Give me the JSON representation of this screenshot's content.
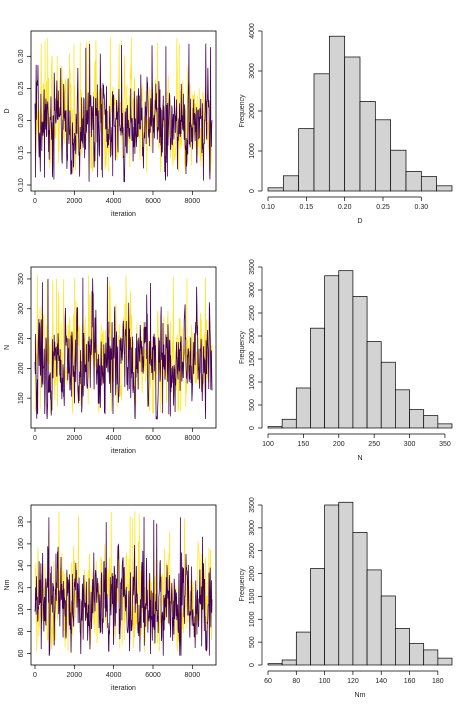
{
  "colors": {
    "chain1": "#FDE725",
    "chain2": "#440154",
    "bar_fill": "#D3D3D3",
    "bar_stroke": "#000000"
  },
  "chart_data": [
    {
      "type": "line",
      "title": "",
      "xlabel": "iteration",
      "ylabel": "D",
      "xlim": [
        0,
        9000
      ],
      "ylim": [
        0.1,
        0.33
      ],
      "xticks": [
        0,
        2000,
        4000,
        6000,
        8000
      ],
      "yticks": [
        0.1,
        0.15,
        0.2,
        0.25,
        0.3
      ],
      "ytick_labels": [
        "0.10",
        "0.15",
        "0.20",
        "0.25",
        "0.30"
      ],
      "series": [
        {
          "color": "#FDE725",
          "seed": 11,
          "mean": 0.2,
          "sd": 0.038,
          "min": 0.12,
          "max": 0.33
        },
        {
          "color": "#440154",
          "seed": 29,
          "mean": 0.195,
          "sd": 0.036,
          "min": 0.105,
          "max": 0.32
        }
      ]
    },
    {
      "type": "bar",
      "title": "",
      "xlabel": "D",
      "ylabel": "Frequency",
      "bin_edges": [
        0.1,
        0.12,
        0.14,
        0.16,
        0.18,
        0.2,
        0.22,
        0.24,
        0.26,
        0.28,
        0.3,
        0.32,
        0.34
      ],
      "values": [
        80,
        380,
        1560,
        2930,
        3870,
        3350,
        2240,
        1780,
        1020,
        490,
        360,
        130
      ],
      "xticks": [
        0.1,
        0.15,
        0.2,
        0.25,
        0.3
      ],
      "xtick_labels": [
        "0.10",
        "0.15",
        "0.20",
        "0.25",
        "0.30"
      ],
      "yticks": [
        0,
        1000,
        2000,
        3000,
        4000
      ],
      "ylim": [
        0,
        4000
      ]
    },
    {
      "type": "line",
      "title": "",
      "xlabel": "iteration",
      "ylabel": "N",
      "xlim": [
        0,
        9000
      ],
      "ylim": [
        110,
        360
      ],
      "xticks": [
        0,
        2000,
        4000,
        6000,
        8000
      ],
      "yticks": [
        150,
        200,
        250,
        300,
        350
      ],
      "ytick_labels": [
        "150",
        "200",
        "250",
        "300",
        "350"
      ],
      "series": [
        {
          "color": "#FDE725",
          "seed": 47,
          "mean": 220,
          "sd": 42,
          "min": 125,
          "max": 360
        },
        {
          "color": "#440154",
          "seed": 83,
          "mean": 212,
          "sd": 40,
          "min": 115,
          "max": 355
        }
      ]
    },
    {
      "type": "bar",
      "title": "",
      "xlabel": "N",
      "ylabel": "Frequency",
      "bin_edges": [
        100,
        120,
        140,
        160,
        180,
        200,
        220,
        240,
        260,
        280,
        300,
        320,
        340,
        360
      ],
      "values": [
        30,
        190,
        870,
        2170,
        3310,
        3420,
        2860,
        1880,
        1430,
        830,
        400,
        270,
        90
      ],
      "xticks": [
        100,
        150,
        200,
        250,
        300,
        350
      ],
      "xtick_labels": [
        "100",
        "150",
        "200",
        "250",
        "300",
        "350"
      ],
      "yticks": [
        0,
        500,
        1000,
        1500,
        2000,
        2500,
        3000,
        3500
      ],
      "ylim": [
        0,
        3500
      ]
    },
    {
      "type": "line",
      "title": "",
      "xlabel": "iteration",
      "ylabel": "Nm",
      "xlim": [
        0,
        9000
      ],
      "ylim": [
        55,
        190
      ],
      "xticks": [
        0,
        2000,
        4000,
        6000,
        8000
      ],
      "yticks": [
        60,
        80,
        100,
        120,
        140,
        160,
        180
      ],
      "ytick_labels": [
        "60",
        "80",
        "100",
        "120",
        "140",
        "160",
        "180"
      ],
      "series": [
        {
          "color": "#FDE725",
          "seed": 101,
          "mean": 110,
          "sd": 23,
          "min": 62,
          "max": 190
        },
        {
          "color": "#440154",
          "seed": 137,
          "mean": 106,
          "sd": 22,
          "min": 58,
          "max": 185
        }
      ]
    },
    {
      "type": "bar",
      "title": "",
      "xlabel": "Nm",
      "ylabel": "Frequency",
      "bin_edges": [
        60,
        70,
        80,
        90,
        100,
        110,
        120,
        130,
        140,
        150,
        160,
        170,
        180,
        190
      ],
      "values": [
        30,
        110,
        720,
        2110,
        3500,
        3560,
        2900,
        2080,
        1510,
        800,
        470,
        330,
        150
      ],
      "xticks": [
        60,
        80,
        100,
        120,
        140,
        160,
        180
      ],
      "xtick_labels": [
        "60",
        "80",
        "100",
        "120",
        "140",
        "160",
        "180"
      ],
      "yticks": [
        0,
        500,
        1000,
        1500,
        2000,
        2500,
        3000,
        3500
      ],
      "ylim": [
        0,
        3500
      ]
    }
  ]
}
